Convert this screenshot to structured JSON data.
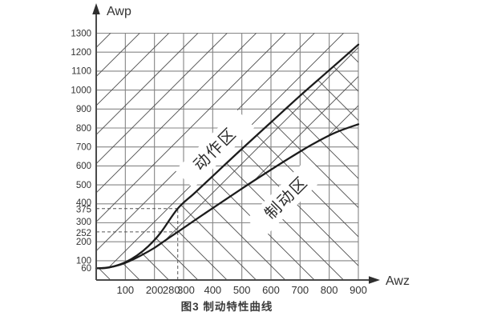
{
  "axes": {
    "y_label": "Awp",
    "x_label": "Awz"
  },
  "zones": {
    "action": "动作区",
    "braking": "制动区"
  },
  "caption": "图3 制动特性曲线",
  "chart_data": {
    "type": "line",
    "title": "图3 制动特性曲线",
    "xlabel": "Awz",
    "ylabel": "Awp",
    "xlim": [
      0,
      900
    ],
    "ylim": [
      0,
      1320
    ],
    "grid": true,
    "xticks": [
      100,
      200,
      280,
      300,
      400,
      500,
      600,
      700,
      800,
      900
    ],
    "yticks": [
      60,
      100,
      200,
      252,
      300,
      375,
      400,
      500,
      600,
      700,
      800,
      900,
      1000,
      1100,
      1200,
      1300
    ],
    "series": [
      {
        "name": "upper_curve",
        "zone_label": "动作区",
        "points": [
          [
            0,
            60
          ],
          [
            30,
            61
          ],
          [
            60,
            70
          ],
          [
            100,
            92
          ],
          [
            140,
            128
          ],
          [
            180,
            178
          ],
          [
            220,
            245
          ],
          [
            280,
            375
          ],
          [
            340,
            460
          ],
          [
            420,
            575
          ],
          [
            500,
            690
          ],
          [
            600,
            830
          ],
          [
            700,
            970
          ],
          [
            800,
            1105
          ],
          [
            900,
            1240
          ]
        ]
      },
      {
        "name": "lower_curve",
        "zone_label": "制动区",
        "points": [
          [
            0,
            60
          ],
          [
            40,
            64
          ],
          [
            80,
            78
          ],
          [
            120,
            102
          ],
          [
            160,
            133
          ],
          [
            200,
            168
          ],
          [
            240,
            210
          ],
          [
            280,
            252
          ],
          [
            340,
            315
          ],
          [
            420,
            398
          ],
          [
            500,
            480
          ],
          [
            580,
            560
          ],
          [
            660,
            638
          ],
          [
            740,
            712
          ],
          [
            820,
            775
          ],
          [
            900,
            820
          ]
        ]
      }
    ],
    "annotations": {
      "dashed_x": 280,
      "dashed_y_upper": 375,
      "dashed_y_lower": 252
    },
    "legend_position": "none",
    "hatch": {
      "upper_left": "/",
      "lower_right": "\\"
    }
  }
}
